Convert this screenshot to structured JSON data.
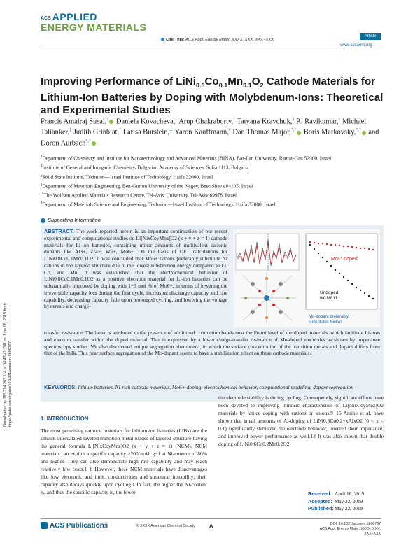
{
  "header": {
    "logo_acs": "ACS",
    "logo_applied": "APPLIED",
    "logo_energy": "ENERGY MATERIALS",
    "cite_label": "Cite This:",
    "cite_text": "ACS Appl. Energy Mater. XXXX, XXX, XXX−XXX",
    "article_badge": "Article",
    "website": "www.acsaem.org"
  },
  "title": {
    "part1": "Improving Performance of LiNi",
    "s1": "0.8",
    "part2": "Co",
    "s2": "0.1",
    "part3": "Mn",
    "s3": "0.1",
    "part4": "O",
    "s4": "2",
    "part5": " Cathode Materials for Lithium-Ion Batteries by Doping with Molybdenum-Ions: Theoretical and Experimental Studies"
  },
  "authors": [
    {
      "name": "Francis Amalraj Susai,",
      "sup": "†",
      "orcid": true
    },
    {
      "name": "Daniela Kovacheva,",
      "sup": "‡",
      "orcid": false
    },
    {
      "name": "Arup Chakraborty,",
      "sup": "†",
      "orcid": false
    },
    {
      "name": "Tatyana Kravchuk,",
      "sup": "§",
      "orcid": false
    },
    {
      "name": "R. Ravikumar,",
      "sup": "†",
      "orcid": false
    },
    {
      "name": "Michael Talianker,",
      "sup": "∥",
      "orcid": false
    },
    {
      "name": "Judith Grinblat,",
      "sup": "†",
      "orcid": false
    },
    {
      "name": "Larisa Burstein,",
      "sup": "⊥",
      "orcid": false
    },
    {
      "name": "Yaron Kauffmann,",
      "sup": "#",
      "orcid": false
    },
    {
      "name": "Dan Thomas Major,",
      "sup": "*,†",
      "orcid": true
    },
    {
      "name": "Boris Markovsky,",
      "sup": "*,†",
      "orcid": true
    },
    {
      "name": "and Doron Aurbach",
      "sup": "*,†",
      "orcid": true
    }
  ],
  "affiliations": [
    {
      "mark": "†",
      "text": "Department of Chemistry and Institute for Nanotechnology and Advanced Materials (BINA), Bar-Ilan University, Ramat-Gan 52900, Israel"
    },
    {
      "mark": "‡",
      "text": "Institute of General and Inorganic Chemistry, Bulgarian Academy of Sciences, Sofia 1113, Bulgaria"
    },
    {
      "mark": "§",
      "text": "Solid State Institute, Technion—Israel Institute of Technology, Haifa 32000, Israel"
    },
    {
      "mark": "∥",
      "text": "Department of Materials Engineering, Ben-Gurion University of the Negev, Beer-Sheva 84105, Israel"
    },
    {
      "mark": "⊥",
      "text": "The Wolfson Applied Materials Research Centre, Tel-Aviv University, Tel-Aviv 69978, Israel"
    },
    {
      "mark": "#",
      "text": "Department of Materials Science and Engineering, Technion—Israel Institute of Technology, Haifa 32000, Israel"
    }
  ],
  "supporting_info": "Supporting Information",
  "abstract": {
    "label": "ABSTRACT:",
    "left_text": "The work reported herein is an important continuation of our recent experimental and computational studies on Li[NixCoyMnz]O2 (x + y + z = 1) cathode materials for Li-ion batteries, containing minor amounts of multivalent cationic dopants like Al3+, Zr4+, W6+, Mo6+. On the basis of DFT calculations for LiNi0.8Co0.1Mn0.1O2, it was concluded that Mo6+ cations preferably substitute Ni cations in the layered structure due to the lowest substitution energy compared to Li, Co, and Mn. It was established that the electrochemical behavior of LiNi0.8Co0.1Mn0.1O2 as a positive electrode material for Li-ion batteries can be substantially improved by doping with 1−3 mol % of Mo6+, in terms of lowering the irreversible capacity loss during the first cycle, increasing discharge capacity and rate capability, decreasing capacity fade upon prolonged cycling, and lowering the voltage hysteresis and charge-",
    "full_text": "transfer resistance. The latter is attributed to the presence of additional conduction bands near the Fermi level of the doped materials, which facilitate Li-ions and electron transfer within the doped material. This is expressed by a lower charge-transfer resistance of Mo-doped electrodes as shown by impedance spectroscopy studies. We also discovered unique segregation phenomena, in which the surface concentration of the transition metals and dopant differs from that of the bulk. This near surface segregation of the Mo-dopant seems to have a stabilization effect on these cathode materials.",
    "keywords_label": "KEYWORDS:",
    "keywords": "lithium batteries, Ni-rich cathode materials, Mo6+ doping, electrochemical behavior, computational modeling, dopant segregation"
  },
  "toc_graphic": {
    "label_doped": "Mo⁶⁺ doped",
    "label_undoped_1": "Undoped",
    "label_undoped_2": "NCM811",
    "label_sub_1": "Mo-dopant preferably",
    "label_sub_2": "substitutes Nickel"
  },
  "side_note": "Downloaded by 181.214.203.114 at 04:43:41:790 on June 06, 2019 from https://pubs.acs.org/doi/10.1021/acsaem.9b00767.",
  "intro": {
    "heading": "1. INTRODUCTION",
    "col1": "The most promising cathode materials for lithium-ion batteries (LIBs) are the lithium intercalated layered transition metal oxides of layered-structure having the general formula Li[NixCoyMnz]O2 (x + y + z = 1) (NCM). NCM materials can exhibit a specific capacity >200 mAh g−1 at Ni-content of 80% and higher. They can also demonstrate high rate capability and may reach relatively low costs.1−8 However, these NCM materials have disadvantages like low electronic and ionic conductivities and structural instability; their capacity also decays quickly upon cycling.1 In fact, the higher the Ni-content is, and thus the specific capacity is, the lower",
    "col2": "the electrode stability is during cycling. Consequently, significant efforts have been devoted to improving intrinsic characteristics of Li[NixCoyMnz]O2 materials by lattice doping with cations or anions.9−15 Amine et al. have shown that small amounts of Al-doping of LiNi0.8Co0.2−xAlxO2 (0 < x < 0.1) significantly stabilized the electrode behavior, lowered their impedance, and improved power performance as well.14 It was also shown that double doping of LiNi0.6Co0.2Mn0.2O2"
  },
  "dates": [
    {
      "label": "Received:",
      "value": "April 16, 2019"
    },
    {
      "label": "Accepted:",
      "value": "May 22, 2019"
    },
    {
      "label": "Published:",
      "value": "May 22, 2019"
    }
  ],
  "footer": {
    "publisher": "ACS Publications",
    "copyright": "© XXXX American Chemical Society",
    "page": "A",
    "doi": "DOI: 10.1021/acsaem.9b00767",
    "journal": "ACS Appl. Energy Mater. XXXX, XXX, XXX−XXX"
  }
}
